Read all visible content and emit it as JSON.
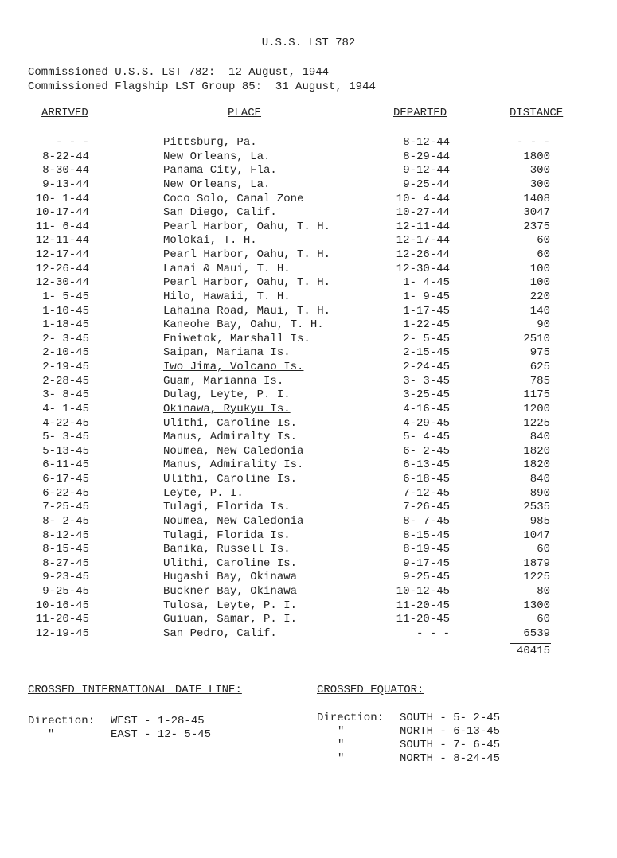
{
  "title": "U.S.S. LST 782",
  "commissioned": [
    "Commissioned U.S.S. LST 782:  12 August, 1944",
    "Commissioned Flagship LST Group 85:  31 August, 1944"
  ],
  "headers": {
    "arrived": "ARRIVED",
    "place": "PLACE",
    "departed": "DEPARTED",
    "distance": "DISTANCE"
  },
  "rows": [
    {
      "arrived": "- - -",
      "place": "Pittsburg, Pa.",
      "departed": "8-12-44",
      "distance": "- - -"
    },
    {
      "arrived": "8-22-44",
      "place": "New Orleans, La.",
      "departed": "8-29-44",
      "distance": "1800"
    },
    {
      "arrived": "8-30-44",
      "place": "Panama City, Fla.",
      "departed": "9-12-44",
      "distance": "300"
    },
    {
      "arrived": "9-13-44",
      "place": "New Orleans, La.",
      "departed": "9-25-44",
      "distance": "300"
    },
    {
      "arrived": "10- 1-44",
      "place": "Coco Solo, Canal Zone",
      "departed": "10- 4-44",
      "distance": "1408"
    },
    {
      "arrived": "10-17-44",
      "place": "San Diego, Calif.",
      "departed": "10-27-44",
      "distance": "3047"
    },
    {
      "arrived": "11- 6-44",
      "place": "Pearl Harbor, Oahu, T. H.",
      "departed": "12-11-44",
      "distance": "2375"
    },
    {
      "arrived": "12-11-44",
      "place": "Molokai, T. H.",
      "departed": "12-17-44",
      "distance": "60"
    },
    {
      "arrived": "12-17-44",
      "place": "Pearl Harbor, Oahu, T. H.",
      "departed": "12-26-44",
      "distance": "60"
    },
    {
      "arrived": "12-26-44",
      "place": "Lanai & Maui, T. H.",
      "departed": "12-30-44",
      "distance": "100"
    },
    {
      "arrived": "12-30-44",
      "place": "Pearl Harbor, Oahu, T. H.",
      "departed": "1- 4-45",
      "distance": "100"
    },
    {
      "arrived": "1- 5-45",
      "place": "Hilo, Hawaii, T. H.",
      "departed": "1- 9-45",
      "distance": "220"
    },
    {
      "arrived": "1-10-45",
      "place": "Lahaina Road, Maui, T. H.",
      "departed": "1-17-45",
      "distance": "140"
    },
    {
      "arrived": "1-18-45",
      "place": "Kaneohe Bay, Oahu, T. H.",
      "departed": "1-22-45",
      "distance": "90"
    },
    {
      "arrived": "2- 3-45",
      "place": "Eniwetok, Marshall Is.",
      "departed": "2- 5-45",
      "distance": "2510"
    },
    {
      "arrived": "2-10-45",
      "place": "Saipan, Mariana Is.",
      "departed": "2-15-45",
      "distance": "975"
    },
    {
      "arrived": "2-19-45",
      "place": "Iwo Jima, Volcano Is.",
      "departed": "2-24-45",
      "distance": "625",
      "underlined": true
    },
    {
      "arrived": "2-28-45",
      "place": "Guam, Marianna Is.",
      "departed": "3- 3-45",
      "distance": "785"
    },
    {
      "arrived": "3- 8-45",
      "place": "Dulag, Leyte, P. I.",
      "departed": "3-25-45",
      "distance": "1175"
    },
    {
      "arrived": "4- 1-45",
      "place": "Okinawa, Ryukyu Is.",
      "departed": "4-16-45",
      "distance": "1200",
      "underlined": true
    },
    {
      "arrived": "4-22-45",
      "place": "Ulithi, Caroline Is.",
      "departed": "4-29-45",
      "distance": "1225"
    },
    {
      "arrived": "5- 3-45",
      "place": "Manus, Admiralty Is.",
      "departed": "5- 4-45",
      "distance": "840"
    },
    {
      "arrived": "5-13-45",
      "place": "Noumea, New Caledonia",
      "departed": "6- 2-45",
      "distance": "1820"
    },
    {
      "arrived": "6-11-45",
      "place": "Manus, Admirality Is.",
      "departed": "6-13-45",
      "distance": "1820"
    },
    {
      "arrived": "6-17-45",
      "place": "Ulithi, Caroline Is.",
      "departed": "6-18-45",
      "distance": "840"
    },
    {
      "arrived": "6-22-45",
      "place": "Leyte, P. I.",
      "departed": "7-12-45",
      "distance": "890"
    },
    {
      "arrived": "7-25-45",
      "place": "Tulagi, Florida Is.",
      "departed": "7-26-45",
      "distance": "2535"
    },
    {
      "arrived": "8- 2-45",
      "place": "Noumea, New Caledonia",
      "departed": "8- 7-45",
      "distance": "985"
    },
    {
      "arrived": "8-12-45",
      "place": "Tulagi, Florida Is.",
      "departed": "8-15-45",
      "distance": "1047"
    },
    {
      "arrived": "8-15-45",
      "place": "Banika, Russell Is.",
      "departed": "8-19-45",
      "distance": "60"
    },
    {
      "arrived": "8-27-45",
      "place": "Ulithi, Caroline Is.",
      "departed": "9-17-45",
      "distance": "1879"
    },
    {
      "arrived": "9-23-45",
      "place": "Hugashi Bay, Okinawa",
      "departed": "9-25-45",
      "distance": "1225"
    },
    {
      "arrived": "9-25-45",
      "place": "Buckner Bay, Okinawa",
      "departed": "10-12-45",
      "distance": "80"
    },
    {
      "arrived": "10-16-45",
      "place": "Tulosa, Leyte, P. I.",
      "departed": "11-20-45",
      "distance": "1300"
    },
    {
      "arrived": "11-20-45",
      "place": "Guiuan, Samar, P. I.",
      "departed": "11-20-45",
      "distance": "60"
    },
    {
      "arrived": "12-19-45",
      "place": "San Pedro, Calif.",
      "departed": "- - -",
      "distance": "6539",
      "last": true
    }
  ],
  "total_distance": "40415",
  "date_line": {
    "heading": "CROSSED INTERNATIONAL DATE LINE:",
    "label": "Direction:",
    "ditto": "\"",
    "entries": [
      "WEST - 1-28-45",
      "EAST - 12- 5-45"
    ]
  },
  "equator": {
    "heading": "CROSSED EQUATOR:",
    "label": "Direction:",
    "ditto": "\"",
    "entries": [
      "SOUTH - 5- 2-45",
      "NORTH - 6-13-45",
      "SOUTH - 7- 6-45",
      "NORTH - 8-24-45"
    ]
  }
}
